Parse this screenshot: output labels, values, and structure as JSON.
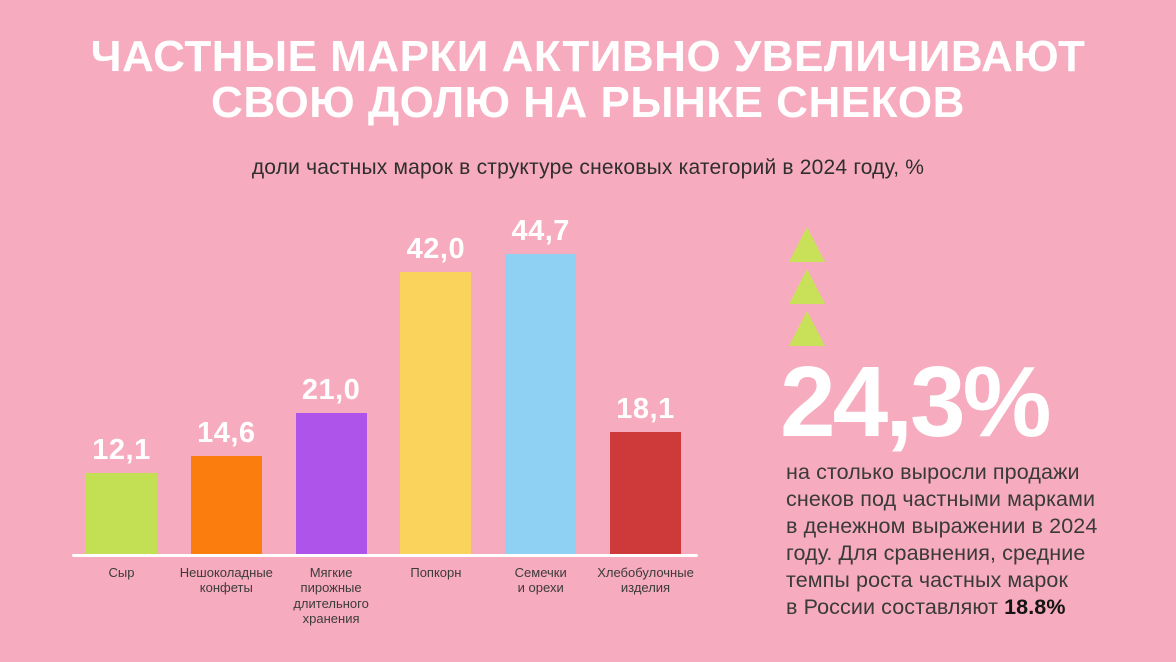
{
  "page": {
    "title": "ЧАСТНЫЕ МАРКИ АКТИВНО УВЕЛИЧИВАЮТ\nСВОЮ ДОЛЮ НА РЫНКЕ СНЕКОВ",
    "subtitle": "доли частных марок в структуре снековых категорий в 2024 году, %"
  },
  "colors": {
    "background": "#F7ABBF",
    "title_text": "#FFFFFF",
    "dark_text": "#2E2E2E",
    "baseline": "#FFFFFF",
    "triangle": "#C8E158"
  },
  "chart_data": {
    "type": "bar",
    "title": "доли частных марок в структуре снековых категорий в 2024 году, %",
    "unit": "%",
    "categories": [
      "Сыр",
      "Нешоколадные\nконфеты",
      "Мягкие\nпирожные\nдлительного\nхранения",
      "Попкорн",
      "Семечки\nи орехи",
      "Хлебобулочные\nизделия"
    ],
    "values": [
      12.1,
      14.6,
      21.0,
      42.0,
      44.7,
      18.1
    ],
    "value_labels": [
      "12,1",
      "14,6",
      "21,0",
      "42,0",
      "44,7",
      "18,1"
    ],
    "bar_colors": [
      "#C3E054",
      "#FA7D0D",
      "#AE54EB",
      "#F9D35B",
      "#8FD1F2",
      "#CE3A3A"
    ],
    "ylim": [
      0,
      50
    ],
    "grid": false,
    "legend": false
  },
  "callout": {
    "triangle_count": 3,
    "big_number": "24,3%",
    "body_text": "на столько выросли продажи\nснеков под частными марками\nв денежном выражении в 2024\nгоду. Для  сравнения, средние\nтемпы роста частных марок\nв России составляют",
    "body_bold": "18.8%"
  }
}
